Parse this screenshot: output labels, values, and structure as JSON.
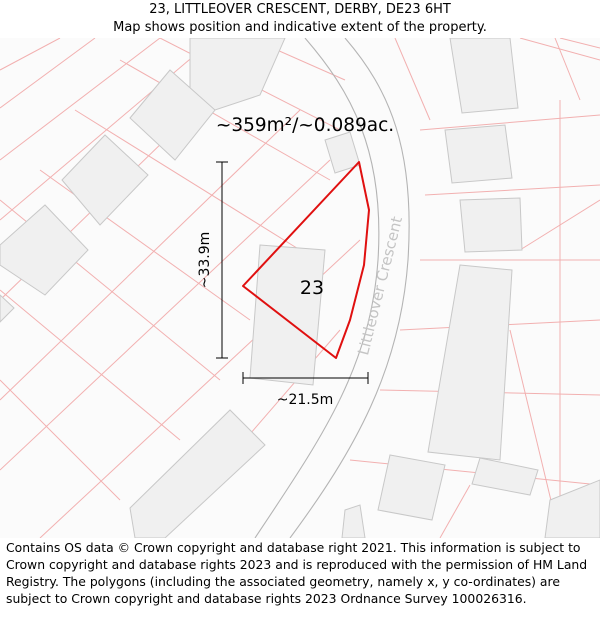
{
  "header": {
    "title": "23, LITTLEOVER CRESCENT, DERBY, DE23 6HT",
    "subtitle": "Map shows position and indicative extent of the property."
  },
  "map": {
    "area_label": "~359m²/~0.089ac.",
    "height_label": "~33.9m",
    "width_label": "~21.5m",
    "house_number": "23",
    "street_name": "Littleover Crescent",
    "colors": {
      "boundary": "#e01010",
      "parcel_lines": "#f2b0b0",
      "building_fill": "#f0f0f0",
      "building_stroke": "#c8c8c8",
      "road_stroke": "#b4b4b4",
      "street_text": "#c4c4c4"
    }
  },
  "footer": {
    "attribution": "Contains OS data © Crown copyright and database right 2021. This information is subject to Crown copyright and database rights 2023 and is reproduced with the permission of HM Land Registry. The polygons (including the associated geometry, namely x, y co-ordinates) are subject to Crown copyright and database rights 2023 Ordnance Survey 100026316."
  }
}
